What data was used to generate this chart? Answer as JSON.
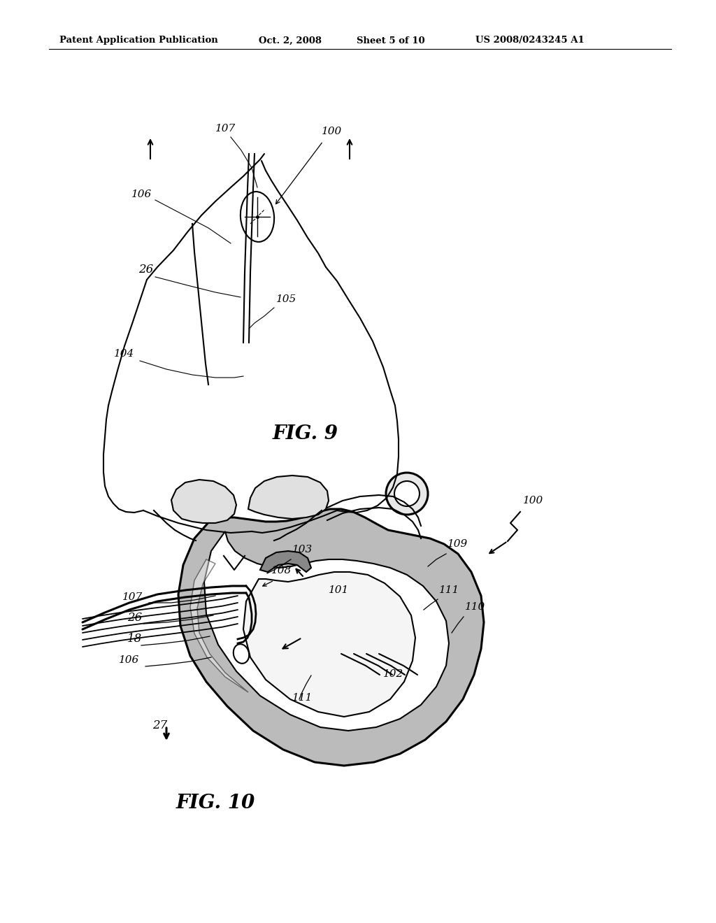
{
  "bg_color": "#ffffff",
  "header_text": "Patent Application Publication",
  "header_date": "Oct. 2, 2008",
  "header_sheet": "Sheet 5 of 10",
  "header_patent": "US 2008/0243245 A1",
  "fig9_label": "FIG. 9",
  "fig10_label": "FIG. 10",
  "line_color": "#000000",
  "stipple_color": "#bbbbbb",
  "light_gray": "#d8d8d8",
  "white": "#ffffff"
}
